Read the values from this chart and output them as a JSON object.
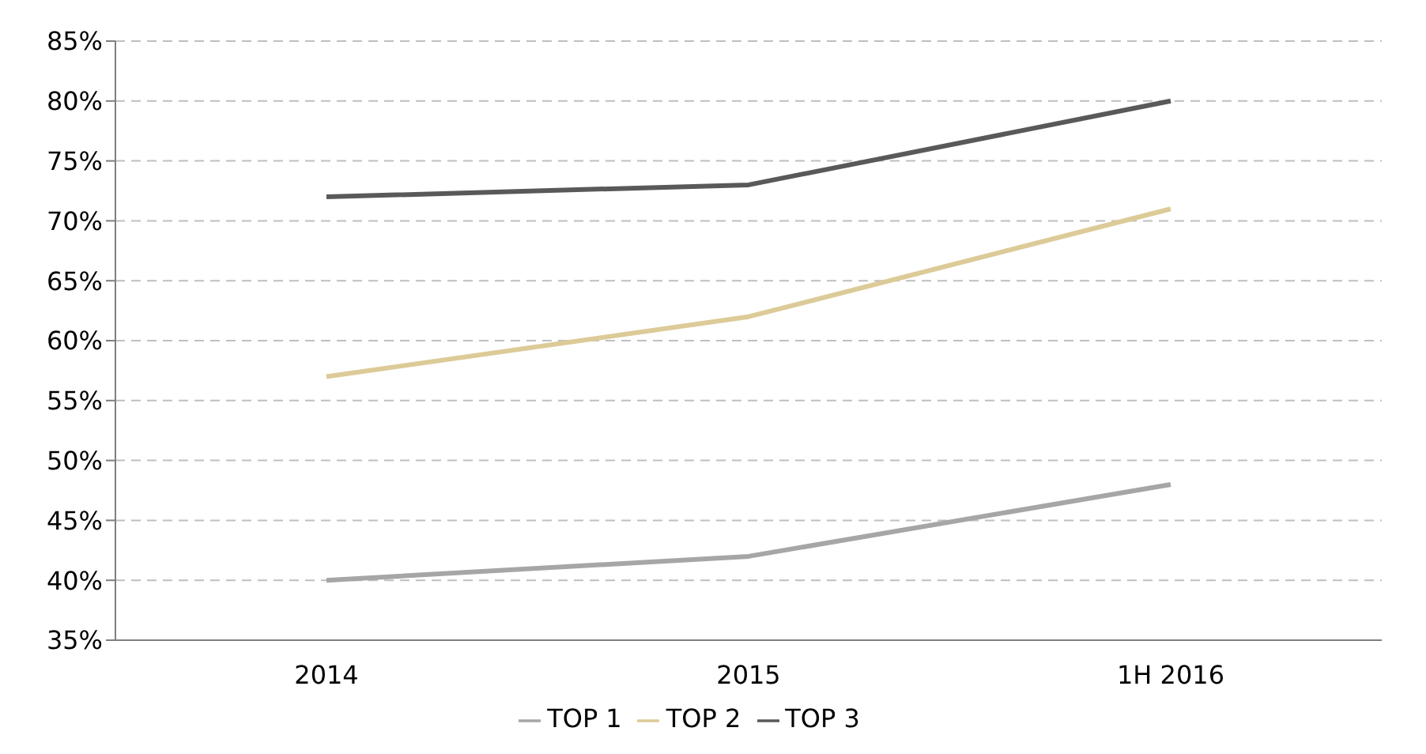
{
  "chart_data": {
    "type": "line",
    "categories": [
      "2014",
      "2015",
      "1H 2016"
    ],
    "series": [
      {
        "name": "TOP 1",
        "color": "#a6a6a6",
        "values": [
          40,
          42,
          48
        ]
      },
      {
        "name": "TOP 2",
        "color": "#dccb98",
        "values": [
          57,
          62,
          71
        ]
      },
      {
        "name": "TOP 3",
        "color": "#595959",
        "values": [
          72,
          73,
          80
        ]
      }
    ],
    "ylim": [
      35,
      85
    ],
    "yticks": [
      {
        "value": 35,
        "label": "35%"
      },
      {
        "value": 40,
        "label": "40%"
      },
      {
        "value": 45,
        "label": "45%"
      },
      {
        "value": 50,
        "label": "50%"
      },
      {
        "value": 55,
        "label": "55%"
      },
      {
        "value": 60,
        "label": "60%"
      },
      {
        "value": 65,
        "label": "65%"
      },
      {
        "value": 70,
        "label": "70%"
      },
      {
        "value": 75,
        "label": "75%"
      },
      {
        "value": 80,
        "label": "80%"
      },
      {
        "value": 85,
        "label": "85%"
      }
    ],
    "grid": "y",
    "legend": "bottom",
    "marker": "none",
    "line_style": "solid"
  }
}
